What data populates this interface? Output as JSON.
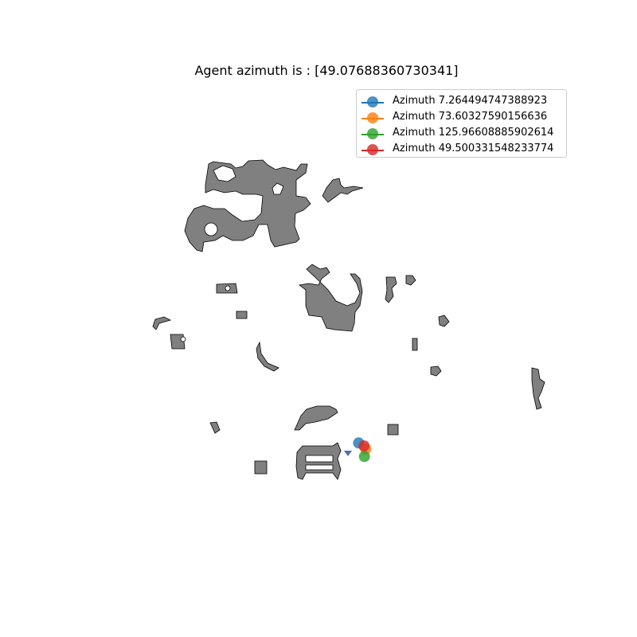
{
  "chart_data": {
    "type": "scatter",
    "title": "Agent azimuth is : [49.07688360730341]",
    "legend_position": "top-right",
    "series": [
      {
        "name": "Azimuth 7.264494747388923",
        "color": "#1f77b4",
        "azimuth": 7.264494747388923
      },
      {
        "name": "Azimuth 73.60327590156636",
        "color": "#ff7f0e",
        "azimuth": 73.60327590156636
      },
      {
        "name": "Azimuth 125.96608885902614",
        "color": "#2ca02c",
        "azimuth": 125.96608885902614
      },
      {
        "name": "Azimuth 49.500331548233774",
        "color": "#d62728",
        "azimuth": 49.500331548233774
      }
    ],
    "agent_azimuth": 49.07688360730341,
    "obstacle_color": "#808080",
    "agent_marker_color": "#4c72b0"
  }
}
